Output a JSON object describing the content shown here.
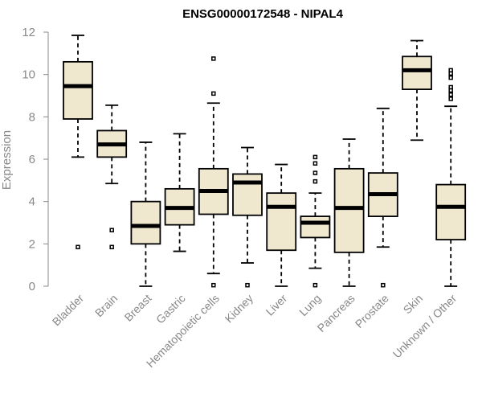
{
  "chart_data": {
    "type": "boxplot",
    "title": "ENSG00000172548 - NIPAL4",
    "xlabel": "",
    "ylabel": "Expression",
    "ylim": [
      0,
      12
    ],
    "yticks": [
      0,
      2,
      4,
      6,
      8,
      10,
      12
    ],
    "grid": false,
    "colors": {
      "box_fill": "#efe8cf",
      "box_stroke": "#000000",
      "axis": "#888888"
    },
    "categories": [
      "Bladder",
      "Brain",
      "Breast",
      "Gastric",
      "Hematopoietic cells",
      "Kidney",
      "Liver",
      "Lung",
      "Pancreas",
      "Prostate",
      "Skin",
      "Unknown / Other"
    ],
    "boxes": [
      {
        "category": "Bladder",
        "min": 6.1,
        "q1": 7.9,
        "median": 9.45,
        "q3": 10.6,
        "max": 11.85,
        "outliers": [
          1.85
        ]
      },
      {
        "category": "Brain",
        "min": 4.85,
        "q1": 6.1,
        "median": 6.7,
        "q3": 7.35,
        "max": 8.55,
        "outliers": [
          2.65,
          1.85
        ]
      },
      {
        "category": "Breast",
        "min": 0.0,
        "q1": 2.0,
        "median": 2.85,
        "q3": 4.0,
        "max": 6.8,
        "outliers": []
      },
      {
        "category": "Gastric",
        "min": 1.65,
        "q1": 2.9,
        "median": 3.7,
        "q3": 4.6,
        "max": 7.2,
        "outliers": []
      },
      {
        "category": "Hematopoietic cells",
        "min": 0.6,
        "q1": 3.4,
        "median": 4.5,
        "q3": 5.55,
        "max": 8.65,
        "outliers": [
          10.75,
          9.1,
          0.05
        ]
      },
      {
        "category": "Kidney",
        "min": 1.1,
        "q1": 3.35,
        "median": 4.9,
        "q3": 5.3,
        "max": 6.55,
        "outliers": [
          0.05
        ]
      },
      {
        "category": "Liver",
        "min": 0.0,
        "q1": 1.7,
        "median": 3.75,
        "q3": 4.4,
        "max": 5.75,
        "outliers": []
      },
      {
        "category": "Lung",
        "min": 0.85,
        "q1": 2.3,
        "median": 3.0,
        "q3": 3.3,
        "max": 4.4,
        "outliers": [
          6.1,
          5.8,
          5.35,
          4.95,
          0.05
        ]
      },
      {
        "category": "Pancreas",
        "min": 0.0,
        "q1": 1.6,
        "median": 3.7,
        "q3": 5.55,
        "max": 6.95,
        "outliers": []
      },
      {
        "category": "Prostate",
        "min": 1.85,
        "q1": 3.3,
        "median": 4.35,
        "q3": 5.35,
        "max": 8.4,
        "outliers": [
          0.05
        ]
      },
      {
        "category": "Skin",
        "min": 6.9,
        "q1": 9.3,
        "median": 10.2,
        "q3": 10.85,
        "max": 11.6,
        "outliers": []
      },
      {
        "category": "Unknown / Other",
        "min": 0.0,
        "q1": 2.2,
        "median": 3.75,
        "q3": 4.8,
        "max": 8.5,
        "outliers": [
          10.2,
          10.05,
          9.85,
          9.4,
          9.25,
          9.05,
          8.85
        ]
      }
    ]
  }
}
